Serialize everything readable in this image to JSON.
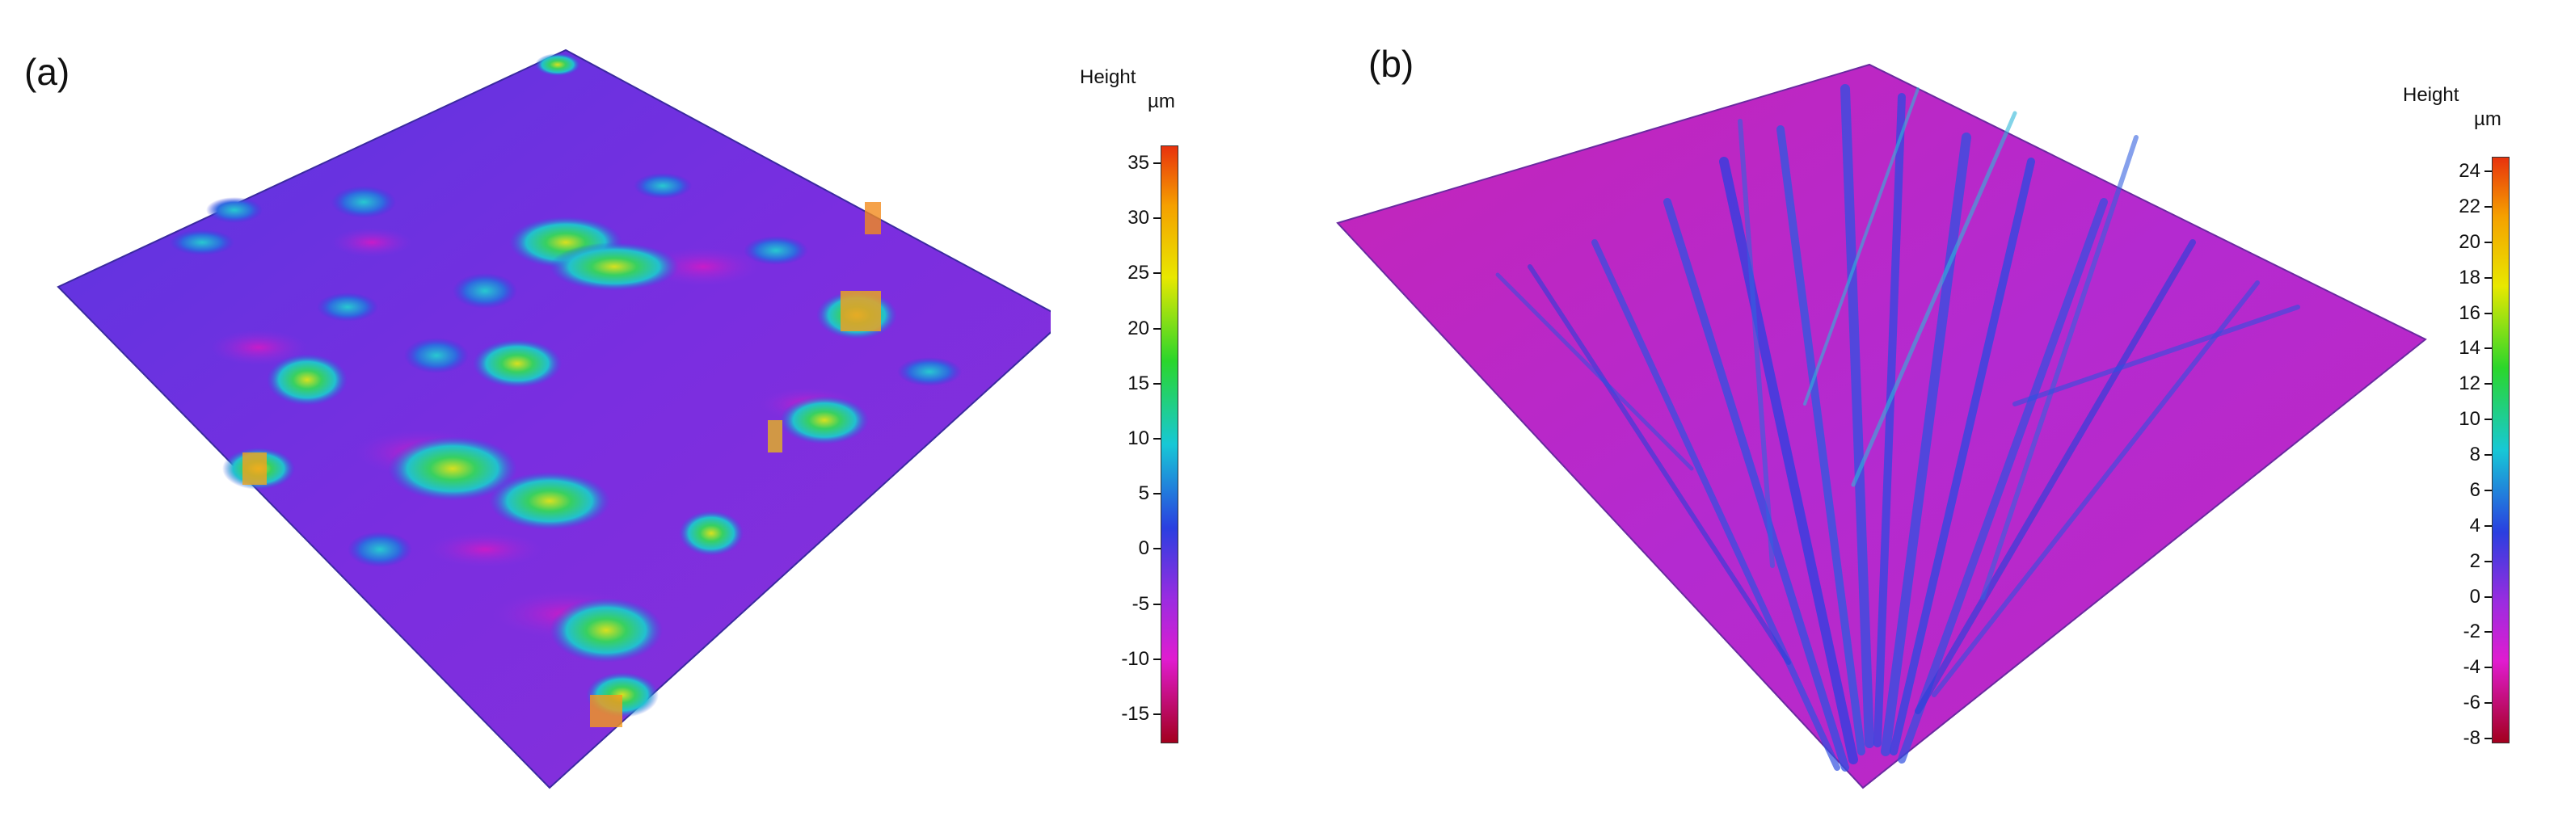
{
  "panels": [
    {
      "label": "(a)",
      "colorbar": {
        "title": "Height",
        "unit": "µm",
        "ticks": [
          "35",
          "30",
          "25",
          "20",
          "15",
          "10",
          "5",
          "0",
          "-5",
          "-10",
          "-15"
        ],
        "range": [
          -18,
          36
        ]
      }
    },
    {
      "label": "(b)",
      "colorbar": {
        "title": "Height",
        "unit": "µm",
        "ticks": [
          "24",
          "22",
          "20",
          "18",
          "16",
          "14",
          "12",
          "10",
          "8",
          "6",
          "4",
          "2",
          "0",
          "-2",
          "-4",
          "-6",
          "-8"
        ],
        "range": [
          -8,
          25
        ]
      }
    }
  ],
  "colors": {
    "scale_top": "#e8320d",
    "scale_orange": "#f5a000",
    "scale_yellow": "#e8e800",
    "scale_green": "#2bd62b",
    "scale_cyan": "#17c8d6",
    "scale_blue": "#2a3fe0",
    "scale_violet": "#9b2ce0",
    "scale_magenta": "#e01cd0",
    "scale_bottom": "#a3001e"
  }
}
